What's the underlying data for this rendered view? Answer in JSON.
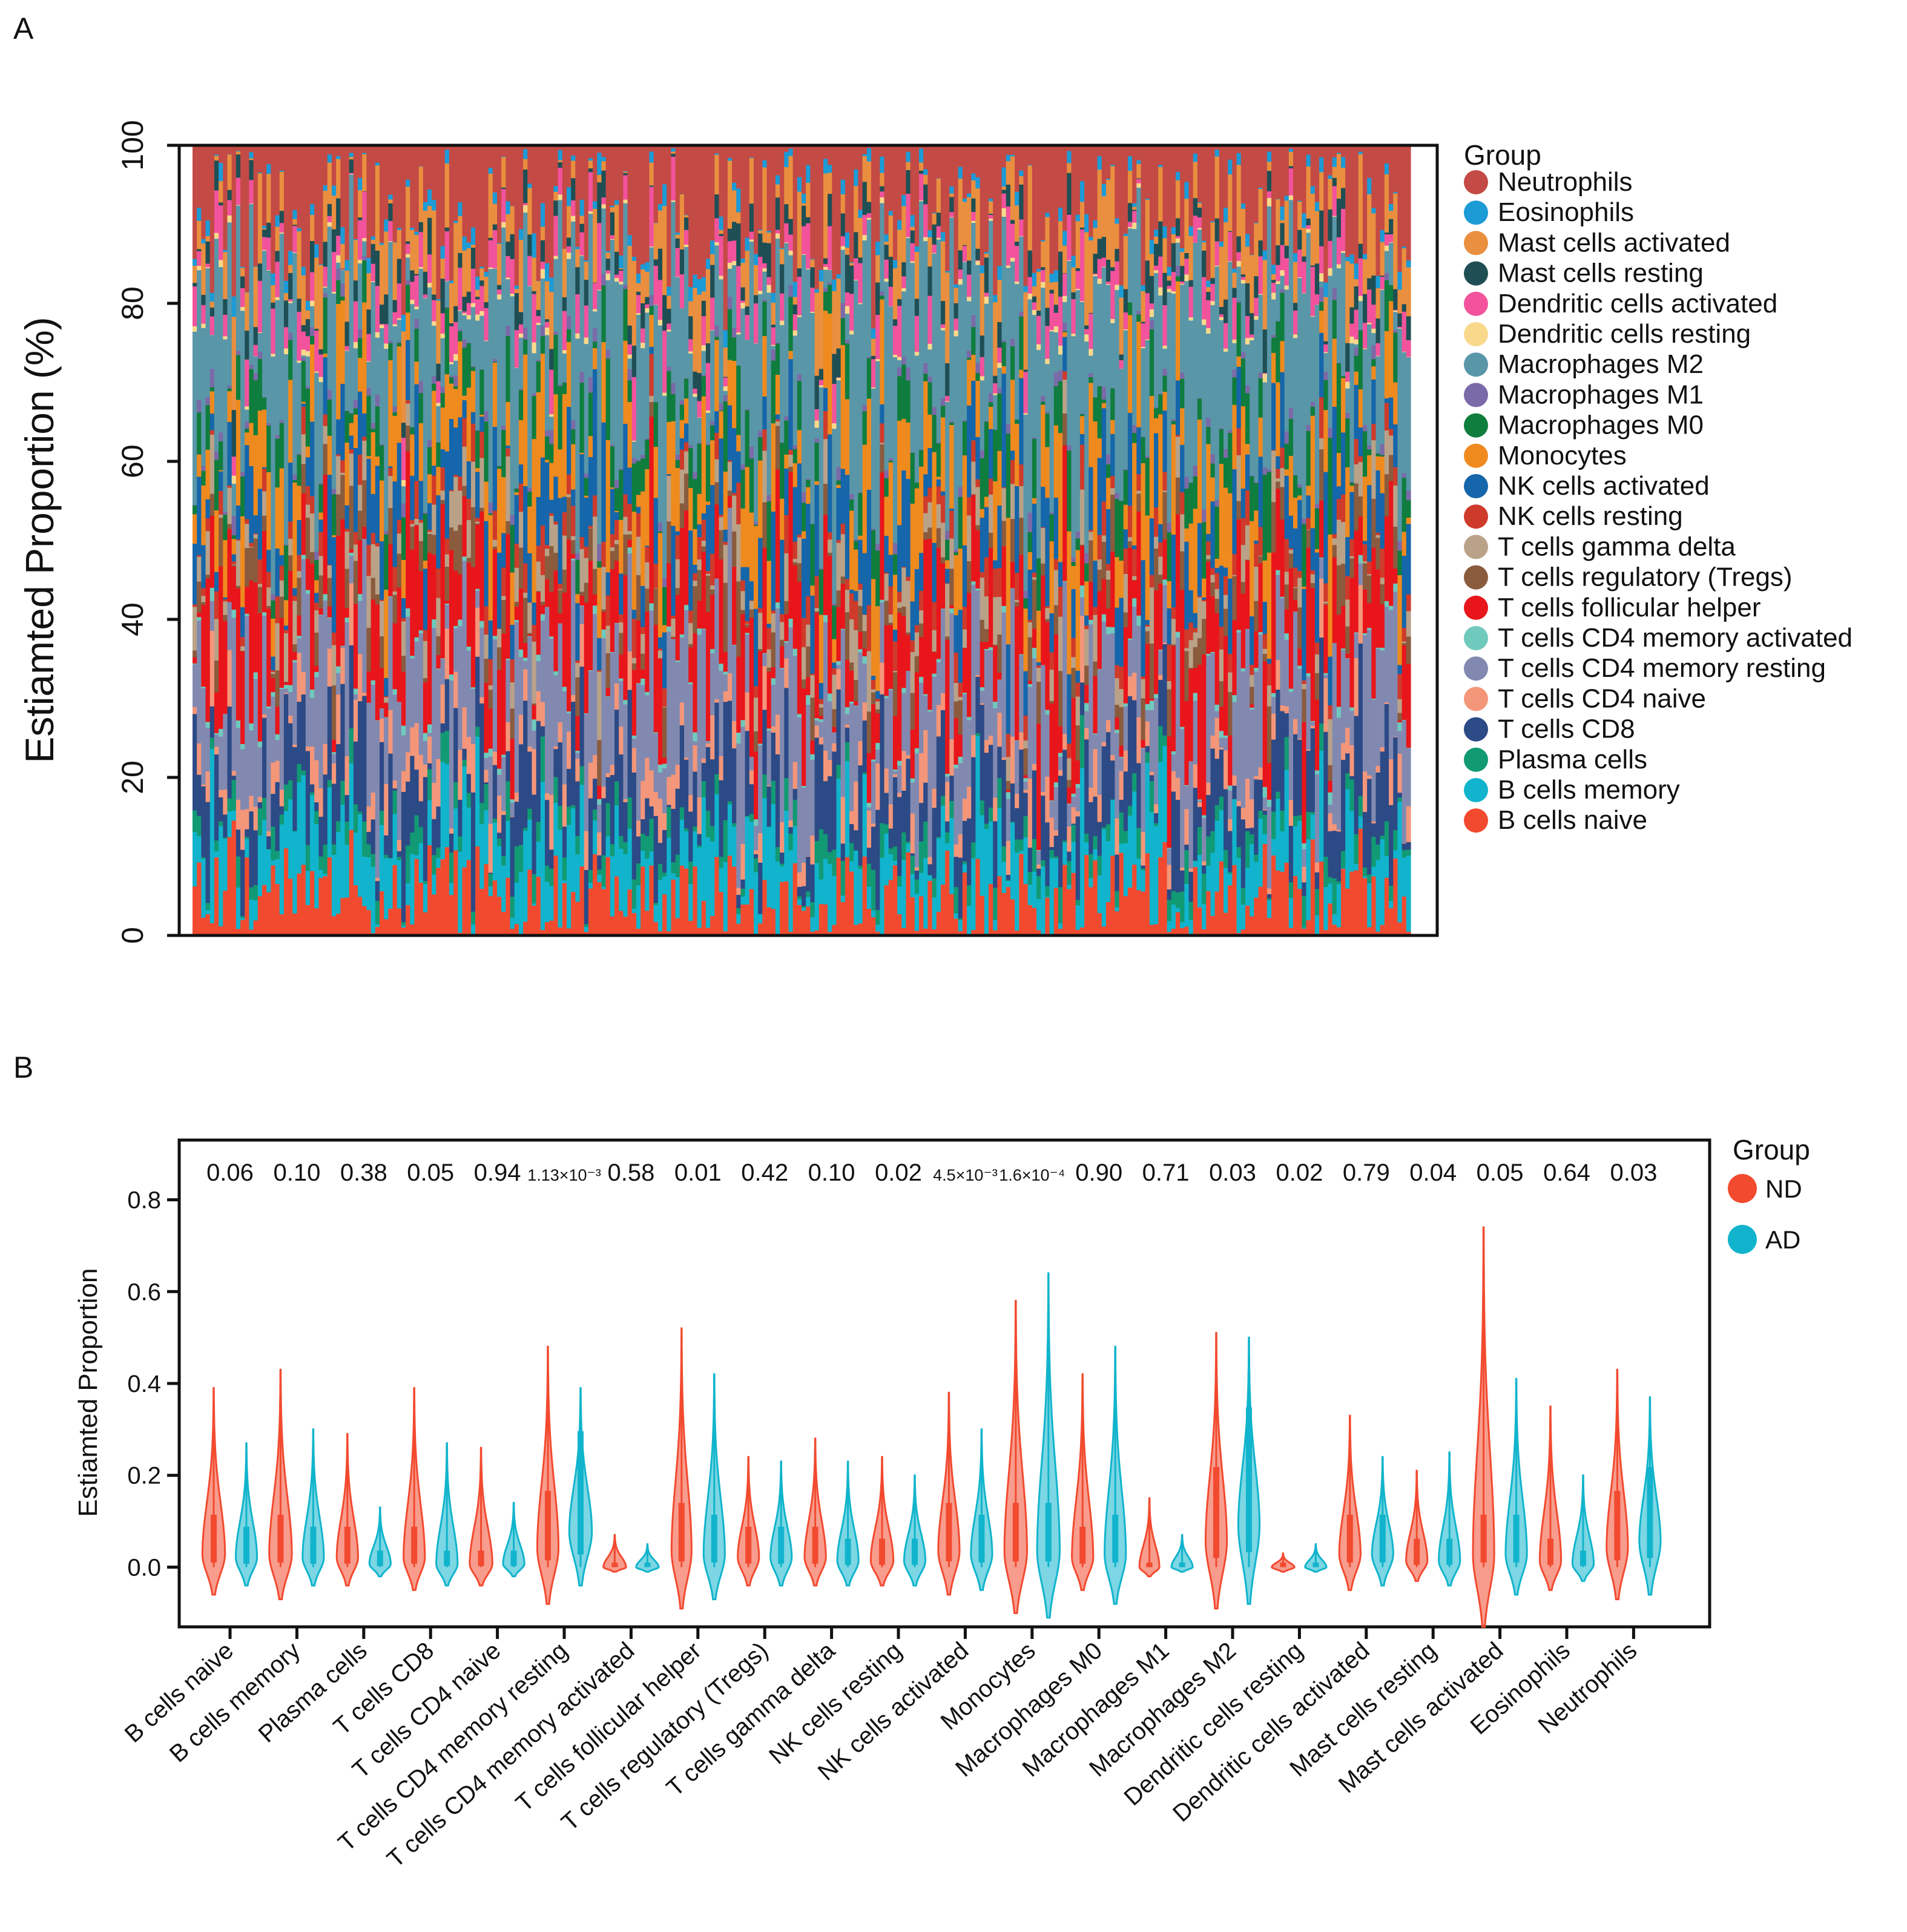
{
  "panels": {
    "a_label": "A",
    "b_label": "B"
  },
  "colors": {
    "Neutrophils": "#c44a45",
    "Eosinophils": "#1c9bd6",
    "Mast cells activated": "#e98f3f",
    "Mast cells resting": "#1f4f55",
    "Dendritic cells activated": "#f2539c",
    "Dendritic cells resting": "#f8d98c",
    "Macrophages M2": "#5996a8",
    "Macrophages M1": "#7b6aa8",
    "Macrophages M0": "#0f7d3d",
    "Monocytes": "#ef8a1f",
    "NK cells activated": "#1566aa",
    "NK cells resting": "#cf3b2b",
    "T cells gamma delta": "#b9a288",
    "T cells regulatory (Tregs)": "#8b5b3e",
    "T cells follicular helper": "#e8161b",
    "T cells CD4 memory activated": "#6fc9bd",
    "T cells CD4 memory resting": "#8289b0",
    "T cells CD4 naive": "#f4967a",
    "T cells CD8": "#2c4a86",
    "Plasma cells": "#119a74",
    "B cells memory": "#11b4cc",
    "B cells naive": "#f24a2f",
    "ND": "#f24a2f",
    "AD": "#11b4cc"
  },
  "chart_data": [
    {
      "type": "bar",
      "stacked": true,
      "ylabel": "Estiamted Proportion (%)",
      "ylim": [
        0,
        100
      ],
      "yticks": [
        "0",
        "20",
        "40",
        "60",
        "80",
        "100"
      ],
      "n_samples": 280,
      "legend_title": "Group",
      "legend_position": "right",
      "legend": [
        "Neutrophils",
        "Eosinophils",
        "Mast cells activated",
        "Mast cells resting",
        "Dendritic cells activated",
        "Dendritic cells resting",
        "Macrophages M2",
        "Macrophages M1",
        "Macrophages M0",
        "Monocytes",
        "NK cells activated",
        "NK cells resting",
        "T cells gamma delta",
        "T cells regulatory (Tregs)",
        "T cells follicular helper",
        "T cells CD4 memory activated",
        "T cells CD4 memory resting",
        "T cells CD4 naive",
        "T cells CD8",
        "Plasma cells",
        "B cells memory",
        "B cells naive"
      ],
      "stack_order_bottom_to_top": [
        "B cells naive",
        "B cells memory",
        "Plasma cells",
        "T cells CD8",
        "T cells CD4 naive",
        "T cells CD4 memory resting",
        "T cells CD4 memory activated",
        "T cells follicular helper",
        "T cells regulatory (Tregs)",
        "T cells gamma delta",
        "NK cells resting",
        "NK cells activated",
        "Monocytes",
        "Macrophages M0",
        "Macrophages M1",
        "Macrophages M2",
        "Dendritic cells resting",
        "Dendritic cells activated",
        "Mast cells resting",
        "Mast cells activated",
        "Eosinophils",
        "Neutrophils"
      ],
      "mean_proportions": [
        5,
        6,
        2,
        7,
        3,
        10,
        0.5,
        9,
        3,
        3,
        2,
        6,
        7,
        4,
        0.8,
        15,
        0.4,
        3,
        2,
        5,
        1,
        9
      ]
    },
    {
      "type": "violin",
      "ylabel": "Estiamted Proportion",
      "ylim": [
        -0.13,
        0.93
      ],
      "yticks": [
        "0.0",
        "0.2",
        "0.4",
        "0.6",
        "0.8"
      ],
      "legend_title": "Group",
      "legend_position": "top-right",
      "groups": [
        "ND",
        "AD"
      ],
      "categories": [
        "B cells naive",
        "B cells memory",
        "Plasma cells",
        "T cells CD8",
        "T cells CD4 naive",
        "T cells CD4 memory resting",
        "T cells CD4 memory activated",
        "T cells follicular helper",
        "T cells regulatory (Tregs)",
        "T cells gamma delta",
        "NK cells resting",
        "NK cells activated",
        "Monocytes",
        "Macrophages M0",
        "Macrophages M1",
        "Macrophages M2",
        "Dendritic cells resting",
        "Dendritic cells activated",
        "Mast cells resting",
        "Mast cells activated",
        "Eosinophils",
        "Neutrophils"
      ],
      "p_values": [
        "0.06",
        "0.10",
        "0.38",
        "0.05",
        "0.94",
        "1.13×10⁻³",
        "0.58",
        "0.01",
        "0.42",
        "0.10",
        "0.02",
        "4.5×10⁻³",
        "1.6×10⁻⁴",
        "0.90",
        "0.71",
        "0.03",
        "0.02",
        "0.79",
        "0.04",
        "0.05",
        "0.64",
        "0.03"
      ],
      "series": [
        {
          "name": "ND",
          "max": [
            0.39,
            0.43,
            0.29,
            0.39,
            0.26,
            0.48,
            0.07,
            0.52,
            0.24,
            0.28,
            0.24,
            0.38,
            0.58,
            0.42,
            0.15,
            0.51,
            0.03,
            0.33,
            0.21,
            0.74,
            0.35,
            0.43
          ],
          "min": [
            -0.06,
            -0.07,
            -0.04,
            -0.05,
            -0.04,
            -0.08,
            -0.01,
            -0.09,
            -0.04,
            -0.04,
            -0.04,
            -0.06,
            -0.1,
            -0.05,
            -0.02,
            -0.09,
            -0.01,
            -0.05,
            -0.03,
            -0.13,
            -0.05,
            -0.07
          ],
          "median": [
            0.04,
            0.04,
            0.03,
            0.03,
            0.01,
            0.06,
            0.0,
            0.05,
            0.03,
            0.03,
            0.02,
            0.05,
            0.05,
            0.03,
            0.0,
            0.08,
            0.0,
            0.04,
            0.02,
            0.04,
            0.02,
            0.06
          ],
          "width": [
            0.85,
            0.85,
            0.8,
            0.8,
            0.85,
            0.8,
            0.85,
            0.75,
            0.8,
            0.8,
            0.85,
            0.8,
            0.85,
            0.8,
            0.75,
            0.8,
            0.85,
            0.8,
            0.8,
            0.8,
            0.8,
            0.8
          ]
        },
        {
          "name": "AD",
          "max": [
            0.27,
            0.3,
            0.13,
            0.27,
            0.14,
            0.39,
            0.05,
            0.42,
            0.23,
            0.23,
            0.2,
            0.3,
            0.64,
            0.48,
            0.07,
            0.5,
            0.05,
            0.24,
            0.25,
            0.41,
            0.2,
            0.37
          ],
          "min": [
            -0.04,
            -0.04,
            -0.02,
            -0.04,
            -0.02,
            -0.04,
            -0.01,
            -0.07,
            -0.04,
            -0.04,
            -0.04,
            -0.05,
            -0.11,
            -0.08,
            -0.01,
            -0.08,
            -0.01,
            -0.04,
            -0.04,
            -0.06,
            -0.03,
            -0.06
          ],
          "median": [
            0.03,
            0.03,
            0.01,
            0.01,
            0.01,
            0.11,
            0.0,
            0.04,
            0.03,
            0.02,
            0.02,
            0.04,
            0.05,
            0.04,
            0.0,
            0.13,
            0.0,
            0.04,
            0.02,
            0.04,
            0.01,
            0.08
          ],
          "width": [
            0.8,
            0.8,
            0.8,
            0.8,
            0.8,
            0.85,
            0.85,
            0.8,
            0.8,
            0.8,
            0.8,
            0.8,
            0.85,
            0.8,
            0.8,
            0.8,
            0.8,
            0.8,
            0.8,
            0.8,
            0.8,
            0.8
          ]
        }
      ]
    }
  ]
}
